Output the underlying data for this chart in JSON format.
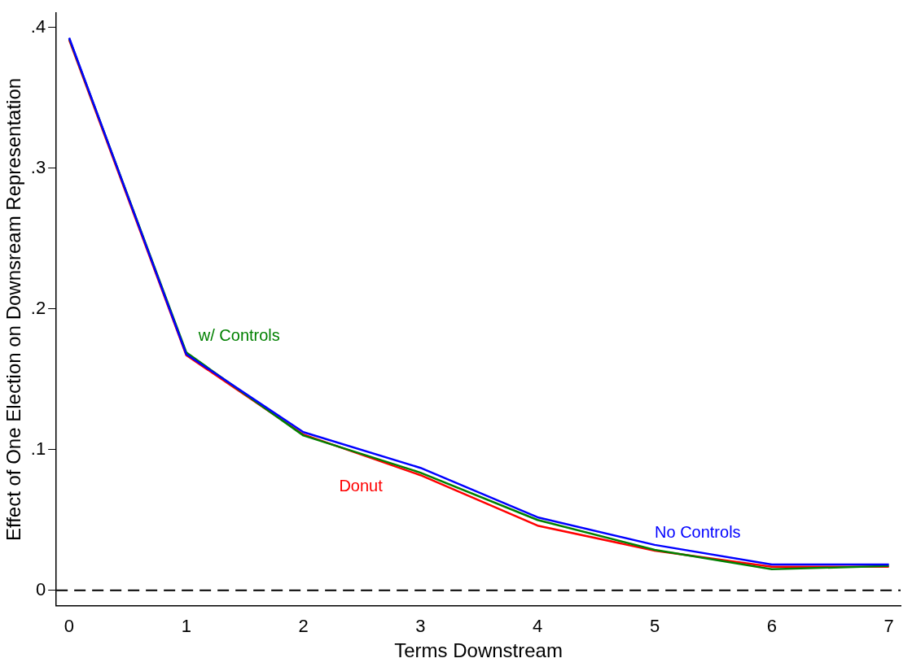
{
  "chart_data": {
    "type": "line",
    "xlabel": "Terms Downstream",
    "ylabel": "Effect of One Election on Downsream Representation",
    "x": [
      0,
      1,
      2,
      3,
      4,
      5,
      6,
      7
    ],
    "series": [
      {
        "name": "No Controls",
        "color": "#0000ff",
        "values": [
          0.3925,
          0.1677,
          0.1124,
          0.087,
          0.0519,
          0.0323,
          0.0184,
          0.0184
        ]
      },
      {
        "name": "w/ Controls",
        "color": "#008000",
        "values": [
          0.392,
          0.169,
          0.11,
          0.0836,
          0.05,
          0.0288,
          0.015,
          0.0173
        ]
      },
      {
        "name": "Donut",
        "color": "#ff0000",
        "values": [
          0.391,
          0.167,
          0.1107,
          0.0818,
          0.046,
          0.0282,
          0.0167,
          0.0167
        ]
      }
    ],
    "xlim": [
      -0.11,
      7.1
    ],
    "xticks": [
      0,
      1,
      2,
      3,
      4,
      5,
      6,
      7
    ],
    "ylim": [
      -0.011,
      0.41
    ],
    "yticks": [
      {
        "value": 0,
        "label": "0"
      },
      {
        "value": 0.1,
        "label": ".1"
      },
      {
        "value": 0.2,
        "label": ".2"
      },
      {
        "value": 0.3,
        "label": ".3"
      },
      {
        "value": 0.4,
        "label": ".4"
      }
    ],
    "ref_lines": [
      {
        "axis": "y",
        "value": 0,
        "color": "#000000",
        "line_style": "dashed"
      }
    ],
    "grid": false,
    "legend": false,
    "marker": "none",
    "line_style": "solid"
  }
}
